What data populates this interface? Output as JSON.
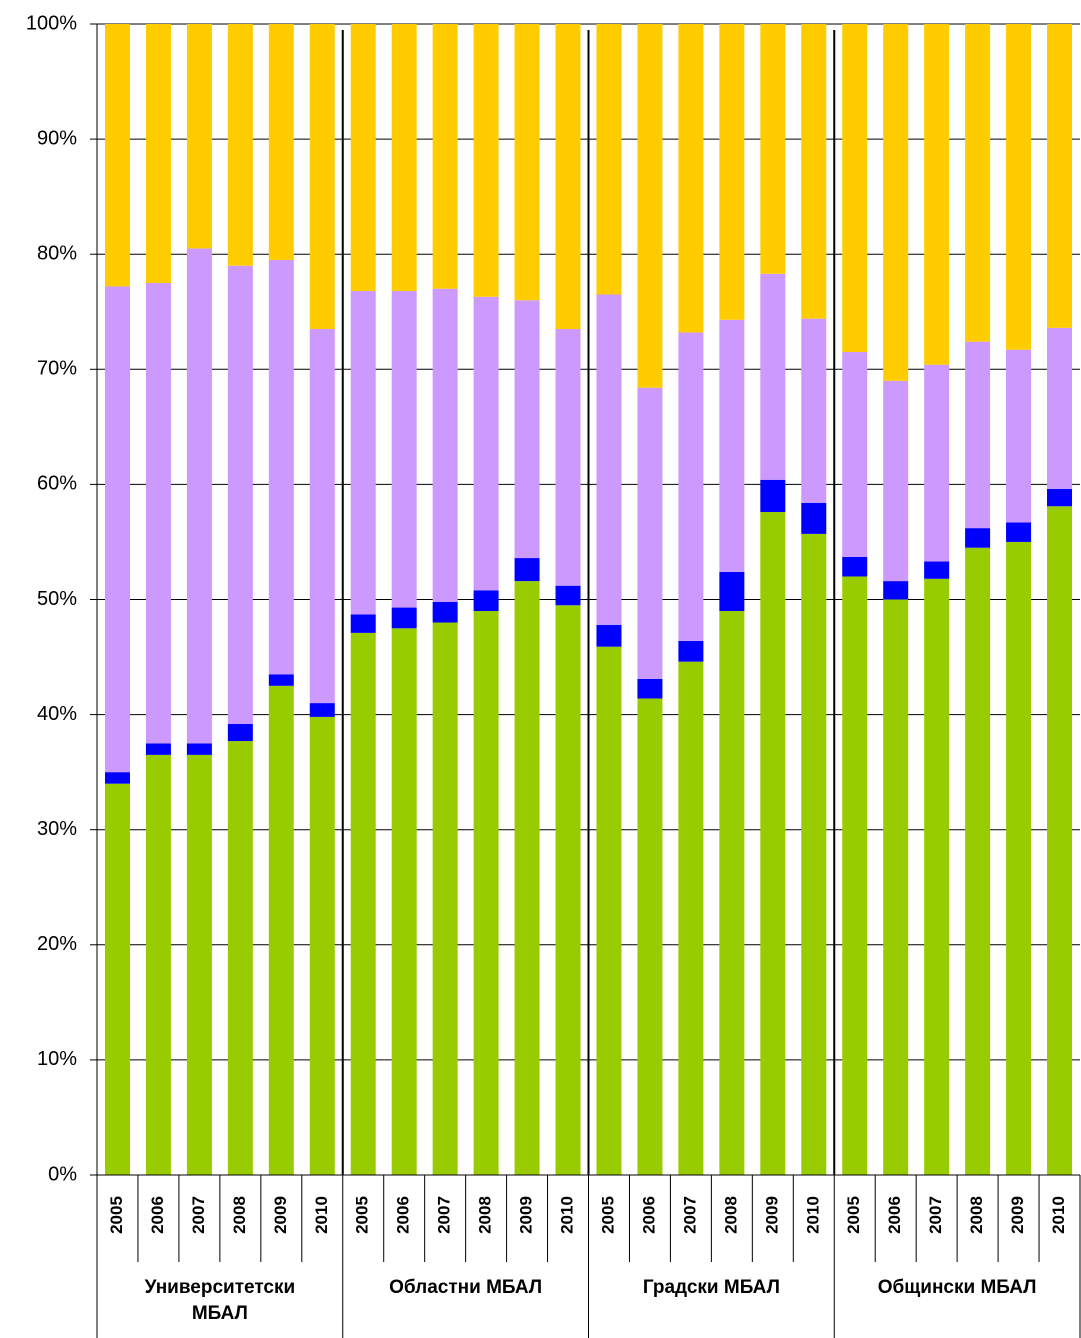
{
  "chart_data": {
    "type": "stacked_bar",
    "categories": [
      "2005",
      "2006",
      "2007",
      "2008",
      "2009",
      "2010",
      "2005",
      "2006",
      "2007",
      "2008",
      "2009",
      "2010",
      "2005",
      "2006",
      "2007",
      "2008",
      "2009",
      "2010",
      "2005",
      "2006",
      "2007",
      "2008",
      "2009",
      "2010"
    ],
    "groups": [
      "Университетски МБАЛ",
      "Областни МБАЛ",
      "Градски МБАЛ",
      "Общински МБАЛ"
    ],
    "series": [
      {
        "color": "#99cc00",
        "values": [
          34.0,
          36.5,
          36.5,
          37.7,
          42.5,
          39.8,
          47.1,
          47.5,
          48.0,
          49.0,
          51.6,
          49.5,
          45.9,
          41.4,
          44.6,
          49.0,
          57.6,
          55.7,
          52.0,
          50.0,
          51.8,
          54.5,
          55.0,
          58.1
        ]
      },
      {
        "color": "#0000ff",
        "values": [
          1.0,
          1.0,
          1.0,
          1.5,
          1.0,
          1.2,
          1.6,
          1.8,
          1.8,
          1.8,
          2.0,
          1.7,
          1.9,
          1.7,
          1.8,
          3.4,
          2.8,
          2.7,
          1.7,
          1.6,
          1.5,
          1.7,
          1.7,
          1.5
        ]
      },
      {
        "color": "#cc99ff",
        "values": [
          42.2,
          40.0,
          43.0,
          39.8,
          36.0,
          32.5,
          28.1,
          27.5,
          27.2,
          25.5,
          22.4,
          22.3,
          28.7,
          25.3,
          26.8,
          21.9,
          17.9,
          16.0,
          17.8,
          17.4,
          17.1,
          16.2,
          15.0,
          14.0
        ]
      },
      {
        "color": "#ffcc00",
        "values": [
          22.8,
          22.5,
          19.5,
          21.0,
          20.5,
          26.5,
          23.2,
          23.2,
          23.0,
          23.7,
          24.0,
          26.5,
          23.5,
          31.6,
          26.8,
          25.7,
          21.7,
          25.6,
          28.5,
          31.0,
          29.6,
          27.6,
          28.3,
          26.4
        ]
      }
    ],
    "ylim": [
      0,
      100
    ],
    "yticks": [
      {
        "value": 0,
        "label": "0%"
      },
      {
        "value": 10,
        "label": "10%"
      },
      {
        "value": 20,
        "label": "20%"
      },
      {
        "value": 30,
        "label": "30%"
      },
      {
        "value": 40,
        "label": "40%"
      },
      {
        "value": 50,
        "label": "50%"
      },
      {
        "value": 60,
        "label": "60%"
      },
      {
        "value": 70,
        "label": "70%"
      },
      {
        "value": 80,
        "label": "80%"
      },
      {
        "value": 90,
        "label": "90%"
      },
      {
        "value": 100,
        "label": "100%"
      }
    ],
    "grid": true
  }
}
